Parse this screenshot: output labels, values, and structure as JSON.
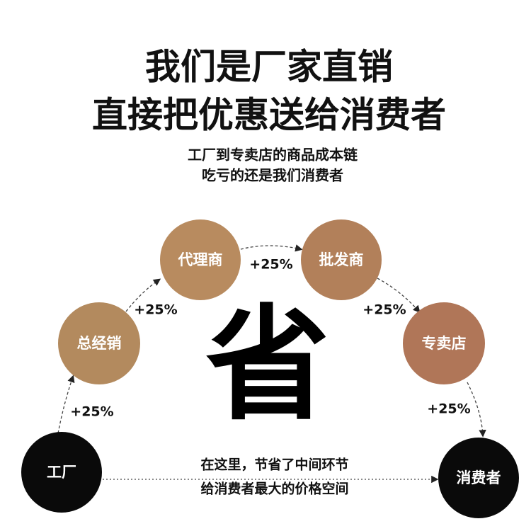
{
  "header": {
    "title_lines": [
      "我们是厂家直销",
      "直接把优惠送给消费者"
    ],
    "subtitle_lines": [
      "工厂到专卖店的商品成本链",
      "吃亏的还是我们消费者"
    ]
  },
  "nodes": [
    {
      "label": "工厂"
    },
    {
      "label": "总经销"
    },
    {
      "label": "代理商"
    },
    {
      "label": "批发商"
    },
    {
      "label": "专卖店"
    },
    {
      "label": "消费者"
    }
  ],
  "markups": [
    "+25%",
    "+25%",
    "+25%",
    "+25%",
    "+25%"
  ],
  "center_text": "省",
  "bottom_lines": [
    "在这里，节省了中间环节",
    "给消费者最大的价格空间"
  ]
}
